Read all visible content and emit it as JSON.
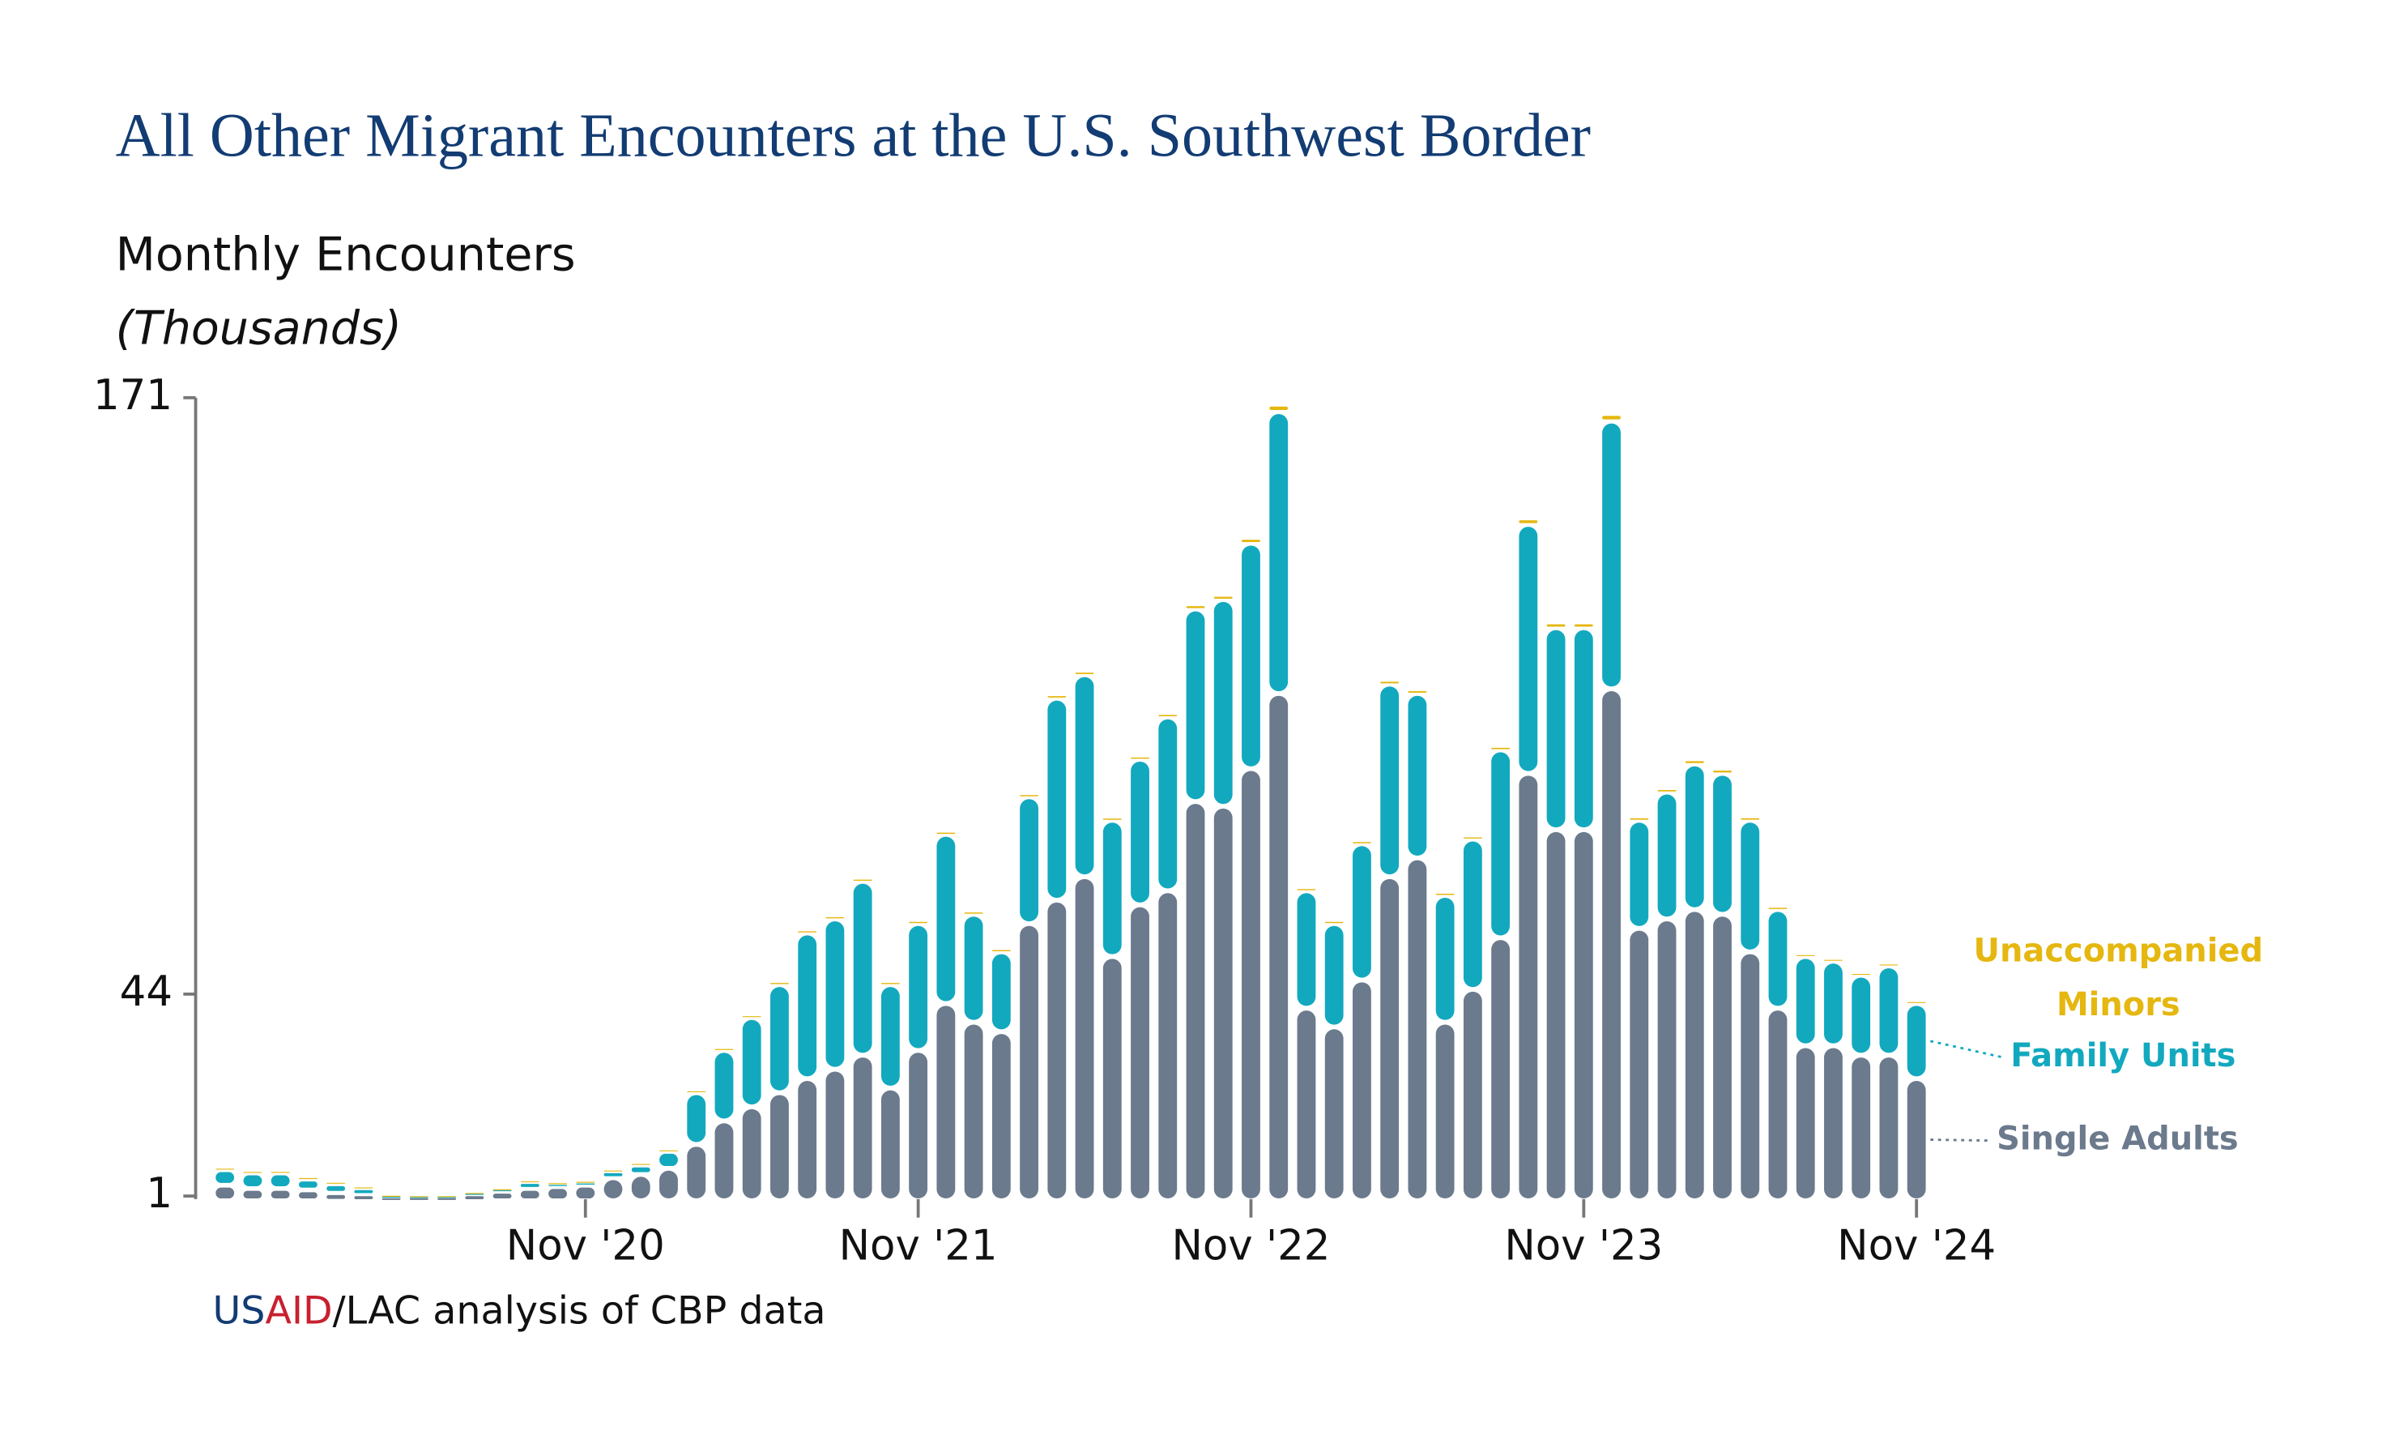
{
  "chart_data": {
    "type": "stacked_bar",
    "title": "All Other Migrant Encounters at the U.S. Southwest Border",
    "subtitle": "Monthly Encounters",
    "y_label": "(Thousands)",
    "source": [
      "US",
      "AID",
      "/LAC analysis of CBP data"
    ],
    "ylim": [
      1,
      171
    ],
    "yticks": [
      1,
      44,
      171
    ],
    "categories": [
      null,
      null,
      null,
      null,
      null,
      null,
      null,
      null,
      null,
      null,
      null,
      null,
      null,
      "Nov '20",
      null,
      null,
      null,
      null,
      null,
      null,
      null,
      null,
      null,
      null,
      null,
      "Nov '21",
      null,
      null,
      null,
      null,
      null,
      null,
      null,
      null,
      null,
      null,
      null,
      "Nov '22",
      null,
      null,
      null,
      null,
      null,
      null,
      null,
      null,
      null,
      null,
      null,
      "Nov '23",
      null,
      null,
      null,
      null,
      null,
      null,
      null,
      null,
      null,
      null,
      null,
      "Nov '24"
    ],
    "series": [
      {
        "name": "Single Adults",
        "color": "#6b7a8c",
        "values": [
          3.3,
          2.6,
          2.6,
          2.3,
          1.6,
          1.3,
          0.7,
          0.7,
          0.7,
          1.3,
          2,
          2.6,
          3,
          3.3,
          4.9,
          5.6,
          6.9,
          12,
          17,
          20,
          23,
          26,
          28,
          31,
          24,
          32,
          42,
          38,
          36,
          59,
          64,
          69,
          52,
          63,
          66,
          85,
          84,
          92,
          108,
          41,
          37,
          47,
          69,
          73,
          38,
          45,
          56,
          91,
          79,
          79,
          109,
          58,
          60,
          62,
          61,
          53,
          41,
          33,
          33,
          31,
          31,
          26
        ]
      },
      {
        "name": "Family Units",
        "color": "#12a9bf",
        "values": [
          3.3,
          3.3,
          3.3,
          2.3,
          2,
          1.3,
          0.2,
          0.1,
          0.1,
          0.2,
          0.3,
          1.3,
          0.5,
          0.5,
          1.3,
          2,
          3.6,
          11,
          15,
          19,
          23,
          31,
          32,
          37,
          22,
          27,
          36,
          23,
          17,
          27,
          43,
          43,
          29,
          31,
          37,
          41,
          44,
          48,
          60,
          25,
          22,
          29,
          41,
          35,
          27,
          32,
          40,
          53,
          43,
          43,
          57,
          23,
          27,
          31,
          30,
          28,
          21,
          19,
          18,
          17,
          19,
          16
        ]
      },
      {
        "name": "Unaccompanied Minors",
        "color": "#e5b70f",
        "values": [
          0.3,
          0.3,
          0.3,
          0.3,
          0.3,
          0.3,
          0.2,
          0.2,
          0.2,
          0.2,
          0.2,
          0.3,
          0.3,
          0.3,
          0.3,
          0.3,
          0.3,
          0.4,
          0.4,
          0.4,
          0.5,
          0.5,
          0.5,
          0.5,
          0.5,
          0.5,
          0.5,
          0.5,
          0.5,
          0.5,
          0.6,
          0.6,
          0.5,
          0.5,
          0.6,
          0.8,
          0.8,
          1,
          1.5,
          0.5,
          0.5,
          0.5,
          0.7,
          0.7,
          0.5,
          0.5,
          0.6,
          1.2,
          1,
          1,
          1.5,
          0.6,
          0.6,
          0.8,
          0.8,
          0.6,
          0.5,
          0.4,
          0.4,
          0.4,
          0.4,
          0.4
        ]
      }
    ]
  }
}
